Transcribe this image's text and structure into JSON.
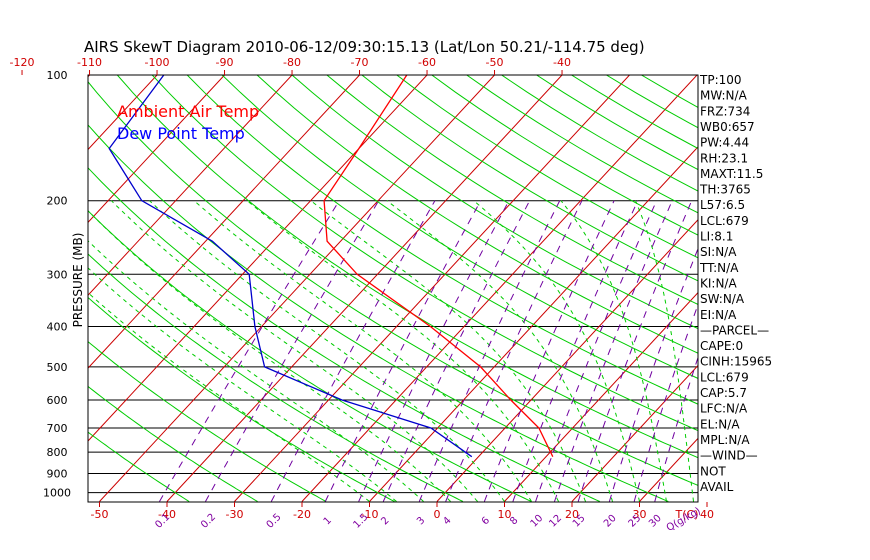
{
  "title": "AIRS SkewT Diagram 2010-06-12/09:30:15.13 (Lat/Lon 50.21/-114.75 deg)",
  "ylabel": "PRESSURE (MB)",
  "legend": {
    "air": "Ambient Air Temp",
    "dew": "Dew Point Temp"
  },
  "colors": {
    "air": "#ff0000",
    "dew": "#0000cc",
    "isotherm": "#cc0000",
    "dry_adiabat": "#00cc00",
    "moist_adiabat": "#00cc00",
    "mixing_ratio": "#7000a0",
    "isobar": "#000000"
  },
  "chart_data": {
    "type": "line",
    "title": "AIRS SkewT Diagram 2010-06-12/09:30:15.13 (Lat/Lon 50.21/-114.75 deg)",
    "ylabel": "PRESSURE (MB)",
    "y_scale": "log",
    "ylim": [
      1050,
      100
    ],
    "pressure_ticks": [
      "100",
      "200",
      "300",
      "400",
      "500",
      "600",
      "700",
      "800",
      "900",
      "1000"
    ],
    "top_temperature_ticks": [
      "-120",
      "-110",
      "-100",
      "-90",
      "-80",
      "-70",
      "-60",
      "-50",
      "-40"
    ],
    "bottom_temperature_ticks": [
      "-50",
      "-40",
      "-30",
      "-20",
      "-10",
      "0",
      "10",
      "20",
      "30",
      "40"
    ],
    "temperature_unit": "T(C)",
    "mixing_ratio_labels": [
      "0.1",
      "0.2",
      "0.5",
      "1",
      "1.5",
      "2",
      "3",
      "4",
      "6",
      "8",
      "10",
      "12",
      "15",
      "20",
      "25",
      "30"
    ],
    "mixing_ratio_unit": "Q(g/kg)",
    "series": [
      {
        "name": "Ambient Air Temp",
        "color": "#ff0000",
        "pressure": [
          820,
          700,
          600,
          500,
          400,
          300,
          250,
          200,
          150,
          100
        ],
        "temperature": [
          11,
          5,
          -3,
          -12,
          -25,
          -43,
          -52,
          -58,
          -60,
          -63
        ]
      },
      {
        "name": "Dew Point Temp",
        "color": "#0000cc",
        "pressure": [
          820,
          700,
          600,
          500,
          400,
          300,
          250,
          200,
          150,
          100
        ],
        "temperature": [
          -1,
          -11,
          -28,
          -44,
          -51,
          -59,
          -69,
          -85,
          -97,
          -99
        ]
      }
    ]
  },
  "indices": [
    "TP:100",
    "MW:N/A",
    "FRZ:734",
    "WB0:657",
    "PW:4.44",
    "RH:23.1",
    "MAXT:11.5",
    "TH:3765",
    "L57:6.5",
    "LCL:679",
    "LI:8.1",
    "SI:N/A",
    "TT:N/A",
    "KI:N/A",
    "SW:N/A",
    "EI:N/A",
    "—PARCEL—",
    "CAPE:0",
    "CINH:15965",
    "LCL:679",
    "CAP:5.7",
    "LFC:N/A",
    "EL:N/A",
    "MPL:N/A",
    "—WIND—",
    "NOT",
    "AVAIL"
  ]
}
